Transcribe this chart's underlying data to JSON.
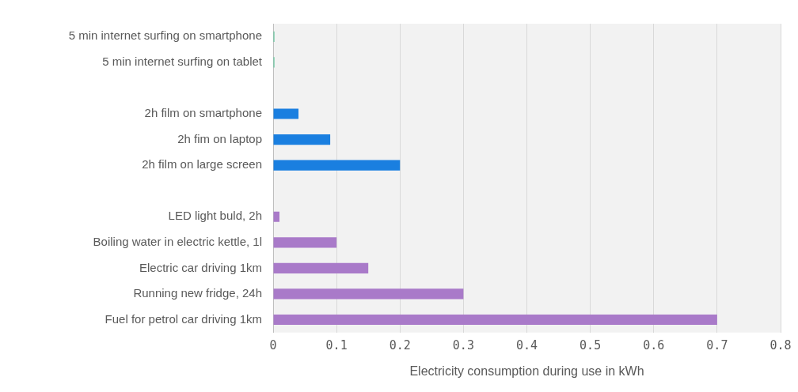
{
  "chart_data": {
    "type": "bar",
    "orientation": "horizontal",
    "xlabel": "Electricity consumption during use in kWh",
    "categories": [
      "5 min internet surfing on smartphone",
      "5 min internet surfing on tablet",
      null,
      "2h film on smartphone",
      "2h fim on laptop",
      "2h film on large screen",
      null,
      "LED light buld, 2h",
      "Boiling water in electric kettle, 1l",
      "Electric car driving 1km",
      "Running new fridge, 24h",
      "Fuel for petrol car driving 1km"
    ],
    "values": [
      0.002,
      0.002,
      null,
      0.04,
      0.09,
      0.2,
      null,
      0.01,
      0.1,
      0.15,
      0.3,
      0.7
    ],
    "colors": [
      "#5cc49a",
      "#5cc49a",
      "#1a7fe0",
      "#1a7fe0",
      "#1a7fe0",
      "#1a7fe0",
      "#a97ac9",
      "#a97ac9",
      "#a97ac9",
      "#a97ac9",
      "#a97ac9",
      "#a97ac9"
    ],
    "xlim": [
      0,
      0.8
    ],
    "xticks": [
      0,
      0.1,
      0.2,
      0.3,
      0.4,
      0.5,
      0.6,
      0.7,
      0.8
    ],
    "grid": "x",
    "legend": false
  }
}
